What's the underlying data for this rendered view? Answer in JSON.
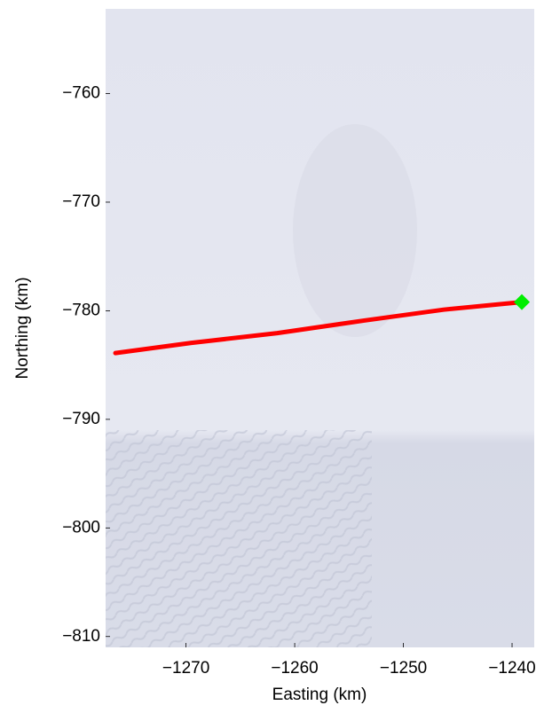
{
  "chart_data": {
    "type": "line",
    "x_label": "Easting (km)",
    "y_label": "Northing (km)",
    "xlim": [
      -1277.4,
      -1237.96
    ],
    "ylim": [
      -811,
      -752.2
    ],
    "xticks": [
      -1270,
      -1260,
      -1250,
      -1240
    ],
    "yticks": [
      -760,
      -770,
      -780,
      -790,
      -800,
      -810
    ],
    "series": [
      {
        "name": "track",
        "color": "#ff0000",
        "x": [
          -1276.5,
          -1269.5,
          -1261.6,
          -1253.6,
          -1246.3,
          -1239.1
        ],
        "values": [
          -783.9,
          -782.96,
          -782.06,
          -780.9,
          -779.9,
          -779.2
        ]
      },
      {
        "name": "end",
        "color": "#00ee00",
        "marker": true,
        "x": [
          -1239.1
        ],
        "values": [
          -779.2
        ]
      }
    ]
  }
}
